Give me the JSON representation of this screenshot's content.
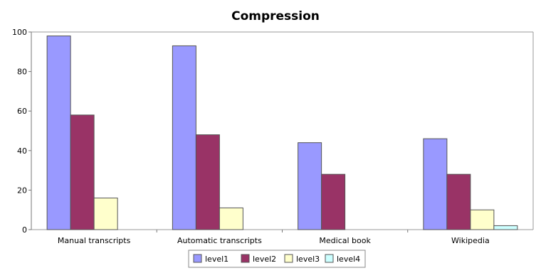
{
  "chart_data": {
    "type": "bar",
    "title": "Compression",
    "categories": [
      "Manual transcripts",
      "Automatic transcripts",
      "Medical book",
      "Wikipedia"
    ],
    "series": [
      {
        "name": "level1",
        "values": [
          98,
          93,
          44,
          46
        ],
        "color": "#9999ff"
      },
      {
        "name": "level2",
        "values": [
          58,
          48,
          28,
          28
        ],
        "color": "#993366"
      },
      {
        "name": "level3",
        "values": [
          16,
          11,
          0,
          10
        ],
        "color": "#ffffcc"
      },
      {
        "name": "level4",
        "values": [
          0,
          0,
          0,
          2
        ],
        "color": "#ccffff"
      }
    ],
    "ylim": [
      0,
      100
    ],
    "yticks": [
      0,
      20,
      40,
      60,
      80,
      100
    ],
    "grid": false,
    "legend_position": "bottom-center"
  }
}
